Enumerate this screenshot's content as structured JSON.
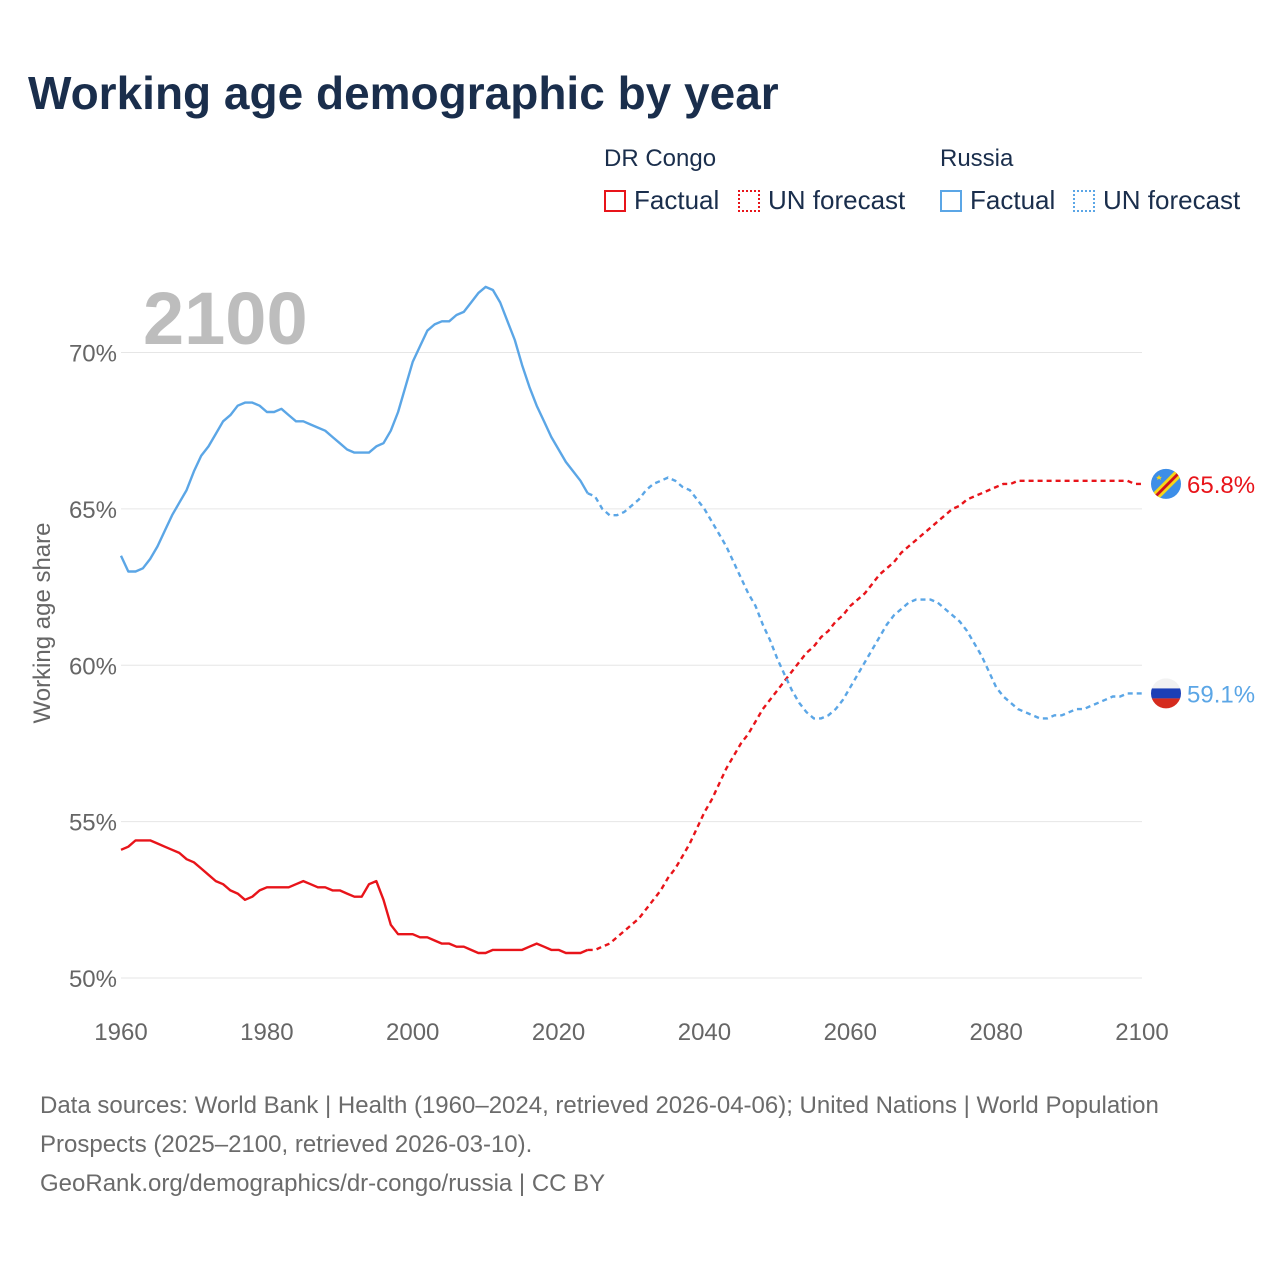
{
  "title": "Working age demographic by year",
  "legend": {
    "dr_congo": {
      "label": "DR Congo",
      "factual": "Factual",
      "forecast": "UN forecast"
    },
    "russia": {
      "label": "Russia",
      "factual": "Factual",
      "forecast": "UN forecast"
    }
  },
  "colors": {
    "dr_congo": "#e8141a",
    "russia": "#5ba6e6",
    "grid": "#e6e6e6",
    "axis_text": "#666666",
    "year_watermark": "#bdbdbd"
  },
  "year_watermark": "2100",
  "end_labels": {
    "dr_congo": "65.8%",
    "russia": "59.1%"
  },
  "footer": {
    "line1": "Data sources: World Bank | Health (1960–2024, retrieved 2026-04-06); United Nations | World Population Prospects (2025–2100, retrieved 2026-03-10).",
    "line2": "GeoRank.org/demographics/dr-congo/russia | CC BY"
  },
  "chart_data": {
    "type": "line",
    "title": "Working age demographic by year",
    "xlabel": "",
    "ylabel": "Working age share",
    "xlim": [
      1960,
      2100
    ],
    "ylim": [
      50,
      72
    ],
    "x_ticks": [
      1960,
      1980,
      2000,
      2020,
      2040,
      2060,
      2080,
      2100
    ],
    "y_ticks": [
      50,
      55,
      60,
      65,
      70
    ],
    "y_tick_labels": [
      "50%",
      "55%",
      "60%",
      "65%",
      "70%"
    ],
    "factual_end_year": 2024,
    "series": [
      {
        "name": "DR Congo",
        "points": [
          [
            1960,
            54.1
          ],
          [
            1961,
            54.2
          ],
          [
            1962,
            54.4
          ],
          [
            1963,
            54.4
          ],
          [
            1964,
            54.4
          ],
          [
            1965,
            54.3
          ],
          [
            1966,
            54.2
          ],
          [
            1967,
            54.1
          ],
          [
            1968,
            54.0
          ],
          [
            1969,
            53.8
          ],
          [
            1970,
            53.7
          ],
          [
            1971,
            53.5
          ],
          [
            1972,
            53.3
          ],
          [
            1973,
            53.1
          ],
          [
            1974,
            53.0
          ],
          [
            1975,
            52.8
          ],
          [
            1976,
            52.7
          ],
          [
            1977,
            52.5
          ],
          [
            1978,
            52.6
          ],
          [
            1979,
            52.8
          ],
          [
            1980,
            52.9
          ],
          [
            1981,
            52.9
          ],
          [
            1982,
            52.9
          ],
          [
            1983,
            52.9
          ],
          [
            1984,
            53.0
          ],
          [
            1985,
            53.1
          ],
          [
            1986,
            53.0
          ],
          [
            1987,
            52.9
          ],
          [
            1988,
            52.9
          ],
          [
            1989,
            52.8
          ],
          [
            1990,
            52.8
          ],
          [
            1991,
            52.7
          ],
          [
            1992,
            52.6
          ],
          [
            1993,
            52.6
          ],
          [
            1994,
            53.0
          ],
          [
            1995,
            53.1
          ],
          [
            1996,
            52.5
          ],
          [
            1997,
            51.7
          ],
          [
            1998,
            51.4
          ],
          [
            1999,
            51.4
          ],
          [
            2000,
            51.4
          ],
          [
            2001,
            51.3
          ],
          [
            2002,
            51.3
          ],
          [
            2003,
            51.2
          ],
          [
            2004,
            51.1
          ],
          [
            2005,
            51.1
          ],
          [
            2006,
            51.0
          ],
          [
            2007,
            51.0
          ],
          [
            2008,
            50.9
          ],
          [
            2009,
            50.8
          ],
          [
            2010,
            50.8
          ],
          [
            2011,
            50.9
          ],
          [
            2012,
            50.9
          ],
          [
            2013,
            50.9
          ],
          [
            2014,
            50.9
          ],
          [
            2015,
            50.9
          ],
          [
            2016,
            51.0
          ],
          [
            2017,
            51.1
          ],
          [
            2018,
            51.0
          ],
          [
            2019,
            50.9
          ],
          [
            2020,
            50.9
          ],
          [
            2021,
            50.8
          ],
          [
            2022,
            50.8
          ],
          [
            2023,
            50.8
          ],
          [
            2024,
            50.9
          ],
          [
            2025,
            50.9
          ],
          [
            2026,
            51.0
          ],
          [
            2027,
            51.1
          ],
          [
            2028,
            51.3
          ],
          [
            2029,
            51.5
          ],
          [
            2030,
            51.7
          ],
          [
            2031,
            51.9
          ],
          [
            2032,
            52.2
          ],
          [
            2033,
            52.5
          ],
          [
            2034,
            52.8
          ],
          [
            2035,
            53.2
          ],
          [
            2036,
            53.5
          ],
          [
            2037,
            53.9
          ],
          [
            2038,
            54.3
          ],
          [
            2039,
            54.8
          ],
          [
            2040,
            55.3
          ],
          [
            2041,
            55.7
          ],
          [
            2042,
            56.2
          ],
          [
            2043,
            56.7
          ],
          [
            2044,
            57.1
          ],
          [
            2045,
            57.5
          ],
          [
            2046,
            57.8
          ],
          [
            2047,
            58.2
          ],
          [
            2048,
            58.6
          ],
          [
            2049,
            58.9
          ],
          [
            2050,
            59.2
          ],
          [
            2051,
            59.5
          ],
          [
            2052,
            59.8
          ],
          [
            2053,
            60.1
          ],
          [
            2054,
            60.4
          ],
          [
            2055,
            60.6
          ],
          [
            2056,
            60.9
          ],
          [
            2057,
            61.1
          ],
          [
            2058,
            61.4
          ],
          [
            2059,
            61.6
          ],
          [
            2060,
            61.9
          ],
          [
            2061,
            62.1
          ],
          [
            2062,
            62.3
          ],
          [
            2063,
            62.6
          ],
          [
            2064,
            62.9
          ],
          [
            2065,
            63.1
          ],
          [
            2066,
            63.3
          ],
          [
            2067,
            63.6
          ],
          [
            2068,
            63.8
          ],
          [
            2069,
            64.0
          ],
          [
            2070,
            64.2
          ],
          [
            2071,
            64.4
          ],
          [
            2072,
            64.6
          ],
          [
            2073,
            64.8
          ],
          [
            2074,
            65.0
          ],
          [
            2075,
            65.1
          ],
          [
            2076,
            65.3
          ],
          [
            2077,
            65.4
          ],
          [
            2078,
            65.5
          ],
          [
            2079,
            65.6
          ],
          [
            2080,
            65.7
          ],
          [
            2081,
            65.8
          ],
          [
            2082,
            65.8
          ],
          [
            2083,
            65.9
          ],
          [
            2084,
            65.9
          ],
          [
            2085,
            65.9
          ],
          [
            2086,
            65.9
          ],
          [
            2087,
            65.9
          ],
          [
            2088,
            65.9
          ],
          [
            2089,
            65.9
          ],
          [
            2090,
            65.9
          ],
          [
            2091,
            65.9
          ],
          [
            2092,
            65.9
          ],
          [
            2093,
            65.9
          ],
          [
            2094,
            65.9
          ],
          [
            2095,
            65.9
          ],
          [
            2096,
            65.9
          ],
          [
            2097,
            65.9
          ],
          [
            2098,
            65.9
          ],
          [
            2099,
            65.8
          ],
          [
            2100,
            65.8
          ]
        ]
      },
      {
        "name": "Russia",
        "points": [
          [
            1960,
            63.5
          ],
          [
            1961,
            63.0
          ],
          [
            1962,
            63.0
          ],
          [
            1963,
            63.1
          ],
          [
            1964,
            63.4
          ],
          [
            1965,
            63.8
          ],
          [
            1966,
            64.3
          ],
          [
            1967,
            64.8
          ],
          [
            1968,
            65.2
          ],
          [
            1969,
            65.6
          ],
          [
            1970,
            66.2
          ],
          [
            1971,
            66.7
          ],
          [
            1972,
            67.0
          ],
          [
            1973,
            67.4
          ],
          [
            1974,
            67.8
          ],
          [
            1975,
            68.0
          ],
          [
            1976,
            68.3
          ],
          [
            1977,
            68.4
          ],
          [
            1978,
            68.4
          ],
          [
            1979,
            68.3
          ],
          [
            1980,
            68.1
          ],
          [
            1981,
            68.1
          ],
          [
            1982,
            68.2
          ],
          [
            1983,
            68.0
          ],
          [
            1984,
            67.8
          ],
          [
            1985,
            67.8
          ],
          [
            1986,
            67.7
          ],
          [
            1987,
            67.6
          ],
          [
            1988,
            67.5
          ],
          [
            1989,
            67.3
          ],
          [
            1990,
            67.1
          ],
          [
            1991,
            66.9
          ],
          [
            1992,
            66.8
          ],
          [
            1993,
            66.8
          ],
          [
            1994,
            66.8
          ],
          [
            1995,
            67.0
          ],
          [
            1996,
            67.1
          ],
          [
            1997,
            67.5
          ],
          [
            1998,
            68.1
          ],
          [
            1999,
            68.9
          ],
          [
            2000,
            69.7
          ],
          [
            2001,
            70.2
          ],
          [
            2002,
            70.7
          ],
          [
            2003,
            70.9
          ],
          [
            2004,
            71.0
          ],
          [
            2005,
            71.0
          ],
          [
            2006,
            71.2
          ],
          [
            2007,
            71.3
          ],
          [
            2008,
            71.6
          ],
          [
            2009,
            71.9
          ],
          [
            2010,
            72.1
          ],
          [
            2011,
            72.0
          ],
          [
            2012,
            71.6
          ],
          [
            2013,
            71.0
          ],
          [
            2014,
            70.4
          ],
          [
            2015,
            69.6
          ],
          [
            2016,
            68.9
          ],
          [
            2017,
            68.3
          ],
          [
            2018,
            67.8
          ],
          [
            2019,
            67.3
          ],
          [
            2020,
            66.9
          ],
          [
            2021,
            66.5
          ],
          [
            2022,
            66.2
          ],
          [
            2023,
            65.9
          ],
          [
            2024,
            65.5
          ],
          [
            2025,
            65.4
          ],
          [
            2026,
            65.0
          ],
          [
            2027,
            64.8
          ],
          [
            2028,
            64.8
          ],
          [
            2029,
            64.9
          ],
          [
            2030,
            65.1
          ],
          [
            2031,
            65.3
          ],
          [
            2032,
            65.6
          ],
          [
            2033,
            65.8
          ],
          [
            2034,
            65.9
          ],
          [
            2035,
            66.0
          ],
          [
            2036,
            65.9
          ],
          [
            2037,
            65.7
          ],
          [
            2038,
            65.6
          ],
          [
            2039,
            65.3
          ],
          [
            2040,
            65.0
          ],
          [
            2041,
            64.6
          ],
          [
            2042,
            64.2
          ],
          [
            2043,
            63.8
          ],
          [
            2044,
            63.3
          ],
          [
            2045,
            62.8
          ],
          [
            2046,
            62.3
          ],
          [
            2047,
            61.9
          ],
          [
            2048,
            61.3
          ],
          [
            2049,
            60.8
          ],
          [
            2050,
            60.2
          ],
          [
            2051,
            59.7
          ],
          [
            2052,
            59.2
          ],
          [
            2053,
            58.8
          ],
          [
            2054,
            58.5
          ],
          [
            2055,
            58.3
          ],
          [
            2056,
            58.3
          ],
          [
            2057,
            58.4
          ],
          [
            2058,
            58.6
          ],
          [
            2059,
            58.9
          ],
          [
            2060,
            59.3
          ],
          [
            2061,
            59.7
          ],
          [
            2062,
            60.1
          ],
          [
            2063,
            60.5
          ],
          [
            2064,
            60.9
          ],
          [
            2065,
            61.3
          ],
          [
            2066,
            61.6
          ],
          [
            2067,
            61.8
          ],
          [
            2068,
            62.0
          ],
          [
            2069,
            62.1
          ],
          [
            2070,
            62.1
          ],
          [
            2071,
            62.1
          ],
          [
            2072,
            62.0
          ],
          [
            2073,
            61.8
          ],
          [
            2074,
            61.6
          ],
          [
            2075,
            61.4
          ],
          [
            2076,
            61.1
          ],
          [
            2077,
            60.7
          ],
          [
            2078,
            60.3
          ],
          [
            2079,
            59.8
          ],
          [
            2080,
            59.3
          ],
          [
            2081,
            59.0
          ],
          [
            2082,
            58.8
          ],
          [
            2083,
            58.6
          ],
          [
            2084,
            58.5
          ],
          [
            2085,
            58.4
          ],
          [
            2086,
            58.3
          ],
          [
            2087,
            58.3
          ],
          [
            2088,
            58.4
          ],
          [
            2089,
            58.4
          ],
          [
            2090,
            58.5
          ],
          [
            2091,
            58.6
          ],
          [
            2092,
            58.6
          ],
          [
            2093,
            58.7
          ],
          [
            2094,
            58.8
          ],
          [
            2095,
            58.9
          ],
          [
            2096,
            59.0
          ],
          [
            2097,
            59.0
          ],
          [
            2098,
            59.1
          ],
          [
            2099,
            59.1
          ],
          [
            2100,
            59.1
          ]
        ]
      }
    ]
  }
}
